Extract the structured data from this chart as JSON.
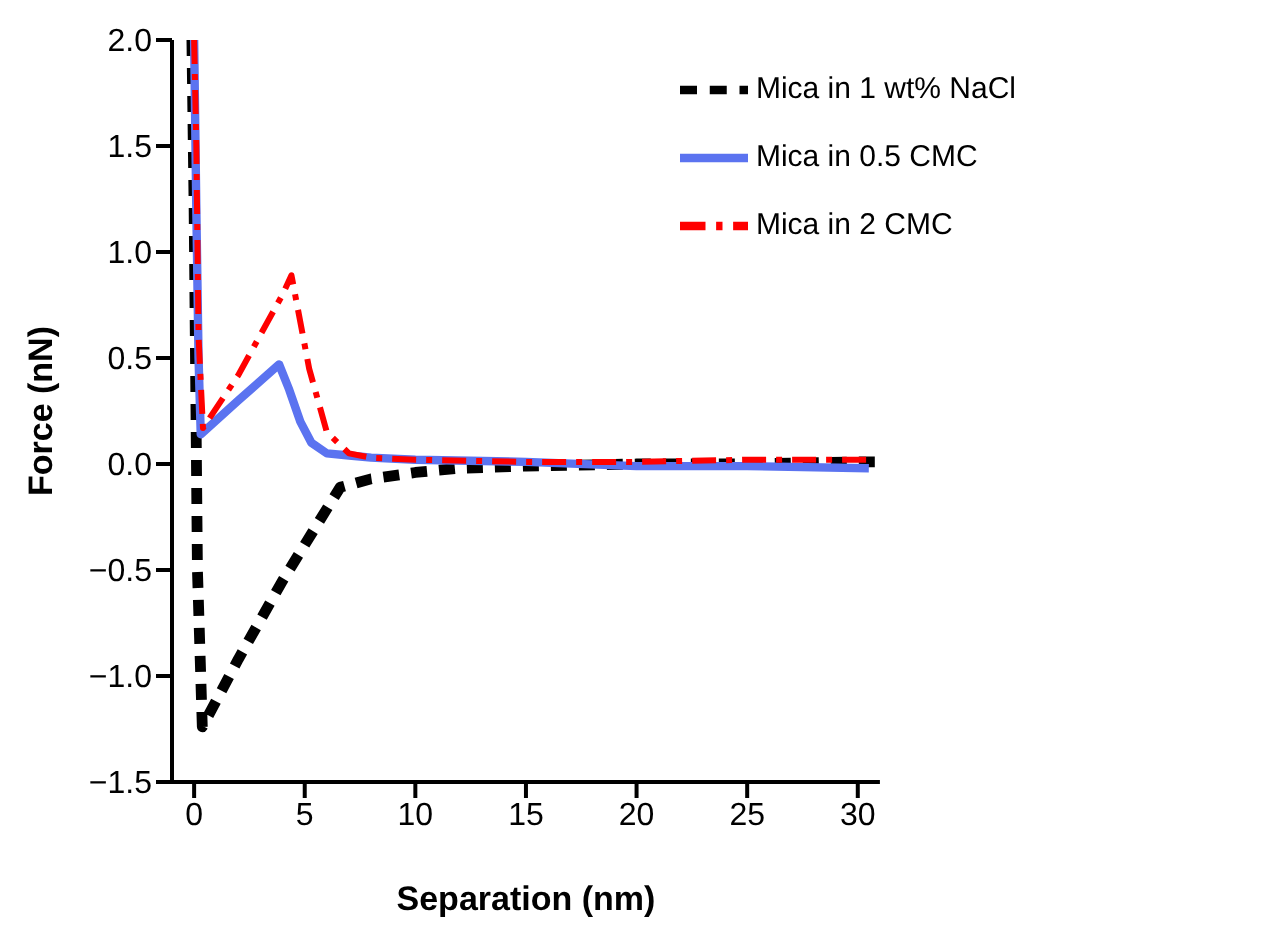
{
  "chart_data": {
    "type": "line",
    "xlabel": "Separation (nm)",
    "ylabel": "Force (nN)",
    "xlim": [
      -1,
      31
    ],
    "xticks": [
      0,
      5,
      10,
      15,
      20,
      25,
      30
    ],
    "ylim": [
      -1.5,
      2.0
    ],
    "yticks": [
      {
        "value": -1.5,
        "label": "−1.5"
      },
      {
        "value": -1.0,
        "label": "−1.0"
      },
      {
        "value": -0.5,
        "label": "−0.5"
      },
      {
        "value": 0,
        "label": "0.0"
      },
      {
        "value": 0.5,
        "label": "0.5"
      },
      {
        "value": 1.0,
        "label": "1.0"
      },
      {
        "value": 1.5,
        "label": "1.5"
      },
      {
        "value": 2.0,
        "label": "2.0"
      }
    ],
    "grid": false,
    "legend": "top right",
    "marker": "none",
    "series": [
      {
        "name": "Mica in 1 wt% NaCl",
        "color": "#000000",
        "line_style": "dashed",
        "x": [
          -0.1,
          0,
          0.15,
          0.37,
          2,
          4,
          6.6,
          8,
          10,
          12,
          15,
          20,
          25,
          30,
          30.8
        ],
        "values": [
          2.0,
          1.2,
          -0.5,
          -1.24,
          -0.92,
          -0.55,
          -0.11,
          -0.07,
          -0.04,
          -0.02,
          -0.01,
          0,
          0,
          0.01,
          0.01
        ]
      },
      {
        "name": "Mica in 0.5 CMC",
        "color": "#5b73f0",
        "line_style": "solid",
        "x": [
          0,
          0.1,
          0.2,
          0.3,
          2,
          3.84,
          4.3,
          4.8,
          5.3,
          6,
          7,
          8,
          10,
          15,
          20,
          25,
          30.5
        ],
        "values": [
          2.0,
          1.2,
          0.5,
          0.14,
          0.3,
          0.47,
          0.35,
          0.2,
          0.1,
          0.05,
          0.04,
          0.03,
          0.02,
          0.01,
          -0.01,
          -0.01,
          -0.02
        ]
      },
      {
        "name": "Mica in 2 CMC",
        "color": "#ff0000",
        "line_style": "dashdot",
        "x": [
          0,
          0.1,
          0.2,
          0.4,
          2,
          4.0,
          4.4,
          5.2,
          6,
          7,
          8,
          10,
          15,
          20,
          25,
          30.5
        ],
        "values": [
          2.0,
          1.5,
          0.6,
          0.17,
          0.42,
          0.8,
          0.89,
          0.45,
          0.15,
          0.05,
          0.03,
          0.02,
          0.01,
          0.01,
          0.02,
          0.02
        ]
      }
    ]
  }
}
